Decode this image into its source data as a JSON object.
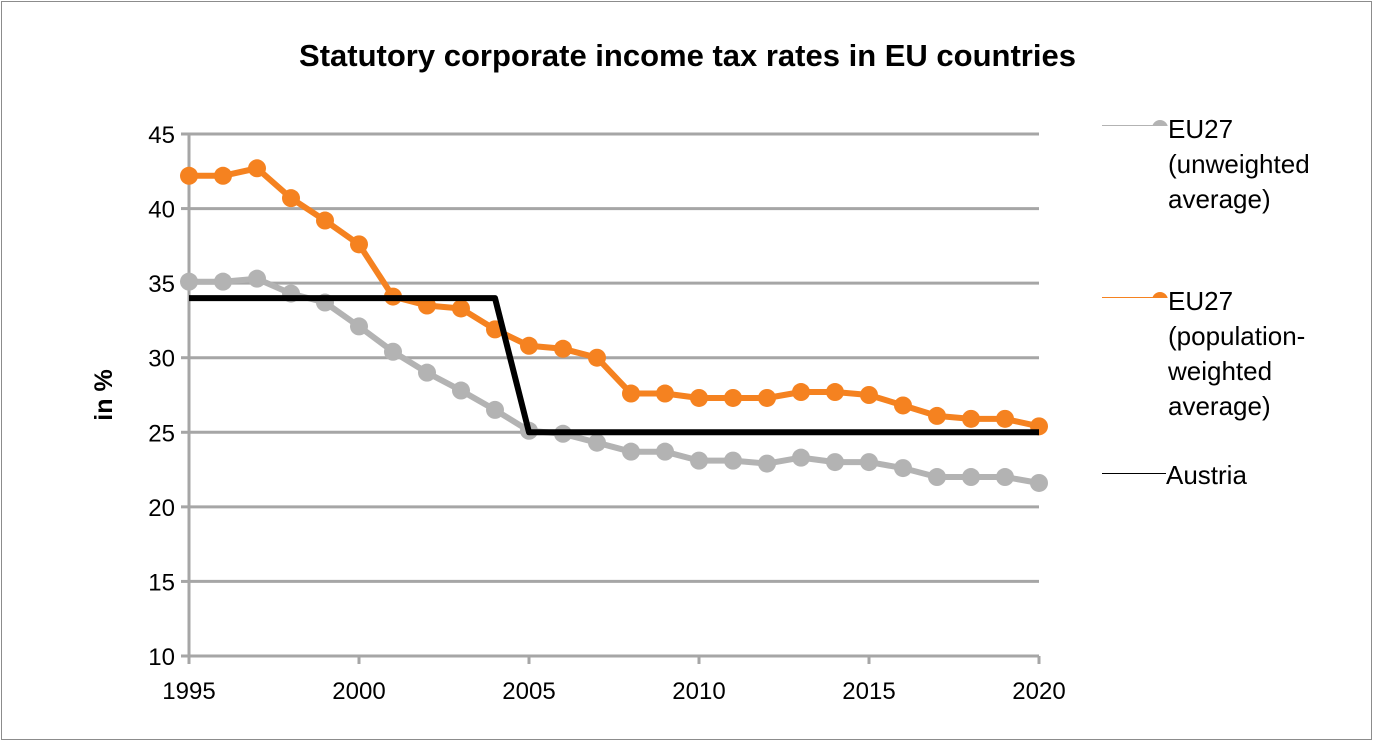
{
  "chart_data": {
    "type": "line",
    "title": "Statutory corporate income tax rates in EU countries",
    "xlabel": "",
    "ylabel": "in %",
    "xlim": [
      1995,
      2020
    ],
    "ylim": [
      10,
      45
    ],
    "xticks": [
      1995,
      2000,
      2005,
      2010,
      2015,
      2020
    ],
    "yticks": [
      10,
      15,
      20,
      25,
      30,
      35,
      40,
      45
    ],
    "grid": "horizontal",
    "legend_position": "right",
    "x": [
      1995,
      1996,
      1997,
      1998,
      1999,
      2000,
      2001,
      2002,
      2003,
      2004,
      2005,
      2006,
      2007,
      2008,
      2009,
      2010,
      2011,
      2012,
      2013,
      2014,
      2015,
      2016,
      2017,
      2018,
      2019,
      2020
    ],
    "series": [
      {
        "name": "EU27 (unweighted average)",
        "color": "#b3b3b3",
        "markers": true,
        "values": [
          35.1,
          35.1,
          35.3,
          34.3,
          33.7,
          32.1,
          30.4,
          29.0,
          27.8,
          26.5,
          25.1,
          24.9,
          24.3,
          23.7,
          23.7,
          23.1,
          23.1,
          22.9,
          23.3,
          23.0,
          23.0,
          22.6,
          22.0,
          22.0,
          22.0,
          21.6
        ]
      },
      {
        "name": "EU27 (population-weighted average)",
        "color": "#f58220",
        "markers": true,
        "values": [
          42.2,
          42.2,
          42.7,
          40.7,
          39.2,
          37.6,
          34.1,
          33.5,
          33.3,
          31.9,
          30.8,
          30.6,
          30.0,
          27.6,
          27.6,
          27.3,
          27.3,
          27.3,
          27.7,
          27.7,
          27.5,
          26.8,
          26.1,
          25.9,
          25.9,
          25.4
        ]
      },
      {
        "name": "Austria",
        "color": "#000000",
        "markers": false,
        "values": [
          34.0,
          34.0,
          34.0,
          34.0,
          34.0,
          34.0,
          34.0,
          34.0,
          34.0,
          34.0,
          25.0,
          25.0,
          25.0,
          25.0,
          25.0,
          25.0,
          25.0,
          25.0,
          25.0,
          25.0,
          25.0,
          25.0,
          25.0,
          25.0,
          25.0,
          25.0
        ]
      }
    ]
  },
  "legend": {
    "items": [
      {
        "line1": "EU27",
        "line2": "(unweighted",
        "line3": "average)"
      },
      {
        "line1": "EU27",
        "line2": "(population-",
        "line3": "weighted",
        "line4": "average)"
      },
      {
        "line1": "Austria"
      }
    ]
  }
}
